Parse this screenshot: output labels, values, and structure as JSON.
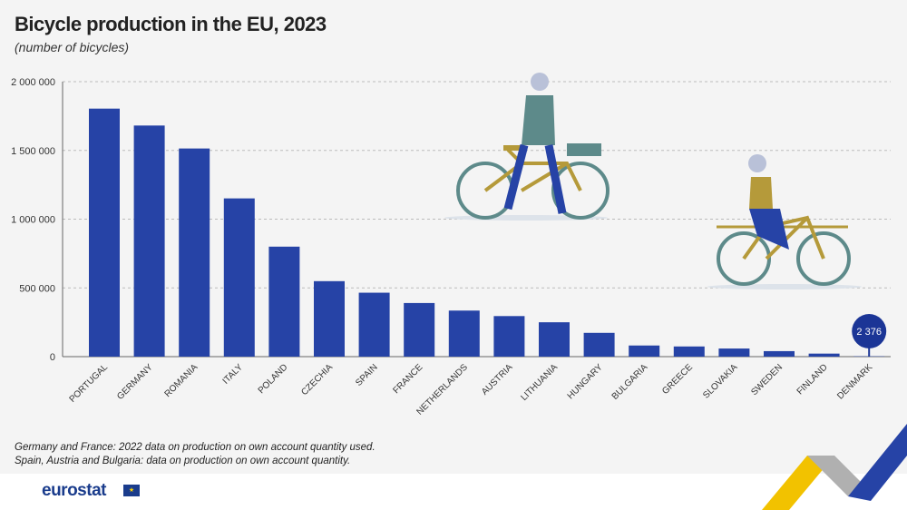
{
  "title": "Bicycle production in the EU, 2023",
  "subtitle": "(number of bicycles)",
  "notes": [
    "Germany and France: 2022 data on production on own account quantity used.",
    "Spain, Austria and Bulgaria: data on production on own account quantity."
  ],
  "logo": "eurostat",
  "colors": {
    "bar": "#2643a6",
    "highlight": "#1b3596",
    "background": "#f4f4f4"
  },
  "chart_data": {
    "type": "bar",
    "title": "Bicycle production in the EU, 2023",
    "ylabel": "",
    "ylim": [
      0,
      2000000
    ],
    "yticks": [
      0,
      500000,
      1000000,
      1500000,
      2000000
    ],
    "ytick_labels": [
      "0",
      "500 000",
      "1 000 000",
      "1 500 000",
      "2 000 000"
    ],
    "grid": true,
    "categories": [
      "PORTUGAL",
      "GERMANY",
      "ROMANIA",
      "ITALY",
      "POLAND",
      "CZECHIA",
      "SPAIN",
      "FRANCE",
      "NETHERLANDS",
      "AUSTRIA",
      "LITHUANIA",
      "HUNGARY",
      "BULGARIA",
      "GREECE",
      "SLOVAKIA",
      "SWEDEN",
      "FINLAND",
      "DENMARK"
    ],
    "values": [
      1804000,
      1681000,
      1514000,
      1151000,
      800000,
      549000,
      465000,
      390000,
      335000,
      295000,
      250000,
      173000,
      81000,
      74000,
      59000,
      40000,
      22000,
      2376
    ],
    "annotations": [
      {
        "category": "DENMARK",
        "label": "2 376"
      }
    ]
  }
}
